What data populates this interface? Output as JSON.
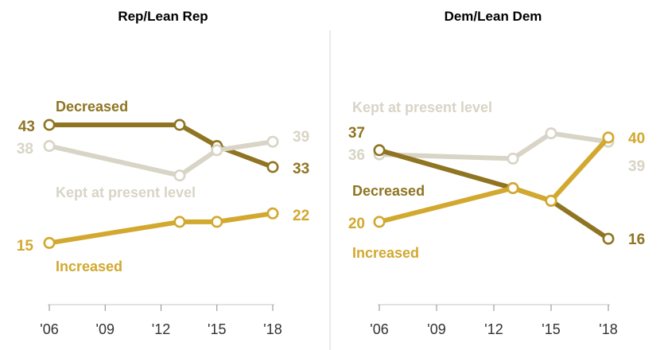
{
  "chart_data": [
    {
      "type": "line",
      "title": "Rep/Lean Rep",
      "x_ticks": [
        "'06",
        "'09",
        "'12",
        "'15",
        "'18"
      ],
      "series": [
        {
          "name": "Decreased",
          "color": "#8f7522",
          "x": [
            2006,
            2013,
            2015,
            2018
          ],
          "values": [
            43,
            43,
            38,
            33
          ]
        },
        {
          "name": "Kept at present level",
          "color": "#d8d4c6",
          "x": [
            2006,
            2013,
            2015,
            2018
          ],
          "values": [
            38,
            31,
            37,
            39
          ]
        },
        {
          "name": "Increased",
          "color": "#d2a82e",
          "x": [
            2006,
            2013,
            2015,
            2018
          ],
          "values": [
            15,
            20,
            20,
            22
          ]
        }
      ],
      "data_labels": {
        "Decreased": {
          "start": "43",
          "end": "33"
        },
        "Kept at present level": {
          "start": "38",
          "end": "39"
        },
        "Increased": {
          "start": "15",
          "end": "22"
        }
      }
    },
    {
      "type": "line",
      "title": "Dem/Lean Dem",
      "x_ticks": [
        "'06",
        "'09",
        "'12",
        "'15",
        "'18"
      ],
      "series": [
        {
          "name": "Kept at present level",
          "color": "#d8d4c6",
          "x": [
            2006,
            2013,
            2015,
            2018
          ],
          "values": [
            36,
            35,
            41,
            39
          ]
        },
        {
          "name": "Decreased",
          "color": "#8f7522",
          "x": [
            2006,
            2013,
            2015,
            2018
          ],
          "values": [
            37,
            28,
            25,
            16
          ]
        },
        {
          "name": "Increased",
          "color": "#d2a82e",
          "x": [
            2006,
            2013,
            2015,
            2018
          ],
          "values": [
            20,
            28,
            25,
            40
          ]
        }
      ],
      "data_labels": {
        "Kept at present level": {
          "start": "36",
          "end": "39"
        },
        "Decreased": {
          "start": "37",
          "end": "16"
        },
        "Increased": {
          "start": "20",
          "end": "40"
        }
      }
    }
  ]
}
